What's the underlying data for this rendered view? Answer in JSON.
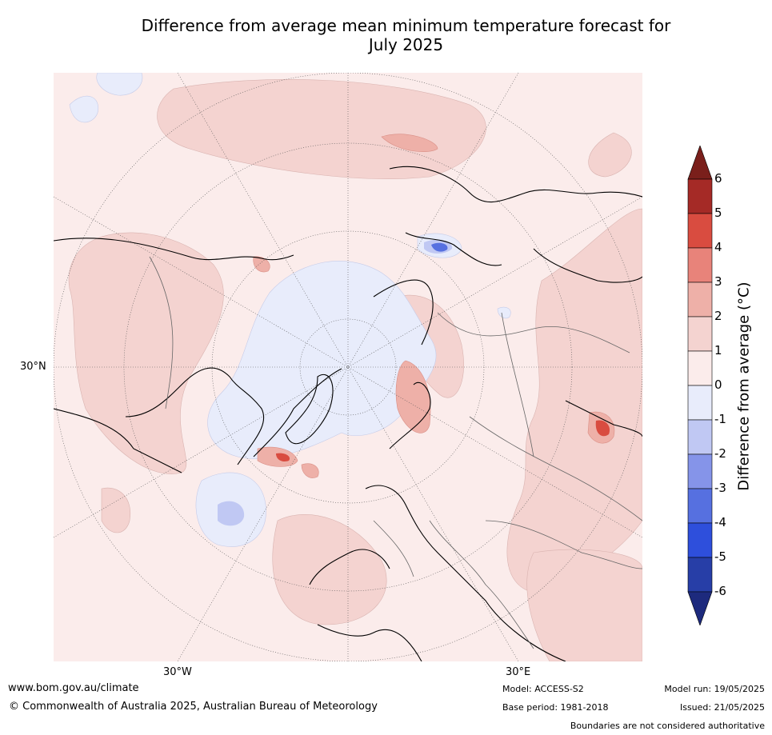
{
  "title_line1": "Difference from average mean minimum temperature forecast for",
  "title_line2": "July 2025",
  "map": {
    "projection": "north-polar-stereographic",
    "ticks": {
      "lat_left": "30°N",
      "lon_bottom_left": "30°W",
      "lon_bottom_right": "30°E"
    }
  },
  "colorbar": {
    "title": "Difference from average (°C)",
    "labels": [
      "6",
      "5",
      "4",
      "3",
      "2",
      "1",
      "0",
      "-1",
      "-2",
      "-3",
      "-4",
      "-5",
      "-6"
    ],
    "colors": {
      "above6": "#7a1f1b",
      "5to6": "#a52a26",
      "4to5": "#d94c40",
      "3to4": "#e8837a",
      "2to3": "#eeb0a8",
      "1to2": "#f4d3d0",
      "0to1": "#fbeceb",
      "m1to0": "#e8ecfb",
      "m2tom1": "#c0c8f3",
      "m3tom2": "#8594e9",
      "m4tom3": "#5670e0",
      "m5tom4": "#2e4fdc",
      "m6tom5": "#273ea7",
      "below_m6": "#1d2a7d"
    }
  },
  "footer": {
    "website": "www.bom.gov.au/climate",
    "copyright": "© Commonwealth of Australia 2025, Australian Bureau of Meteorology",
    "model": "Model: ACCESS-S2",
    "base_period": "Base period: 1981-2018",
    "model_run": "Model run: 19/05/2025",
    "issued": "Issued: 21/05/2025",
    "disclaimer": "Boundaries are not considered authoritative"
  }
}
